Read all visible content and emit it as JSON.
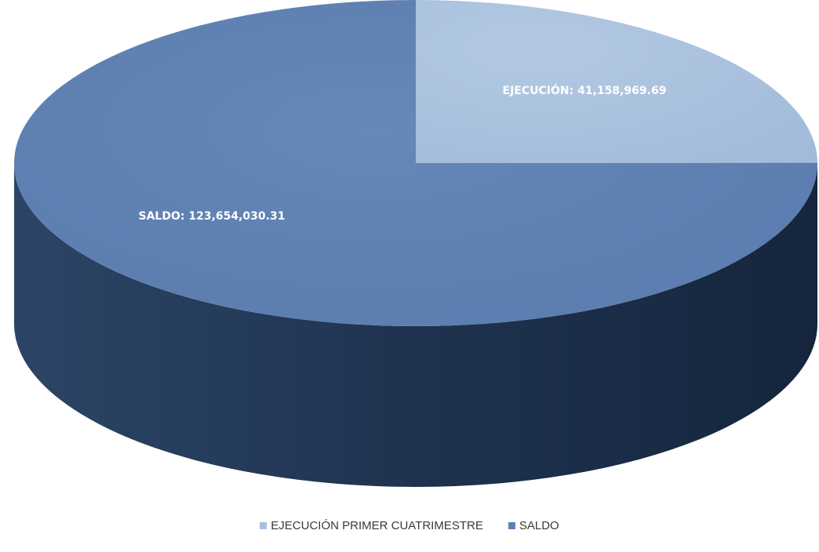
{
  "chart_data": {
    "type": "pie",
    "title": "",
    "slices": [
      {
        "legend": "EJECUCIÓN PRIMER CUATRIMESTRE",
        "label": "EJECUCIÓN: 41,158,969.69",
        "value": 41158969.69,
        "color": "#a9c1de"
      },
      {
        "legend": "SALDO",
        "label": "SALDO: 123,654,030.31",
        "value": 123654030.31,
        "color": "#5f82b3"
      }
    ],
    "legend_position": "bottom",
    "style": "3d"
  }
}
